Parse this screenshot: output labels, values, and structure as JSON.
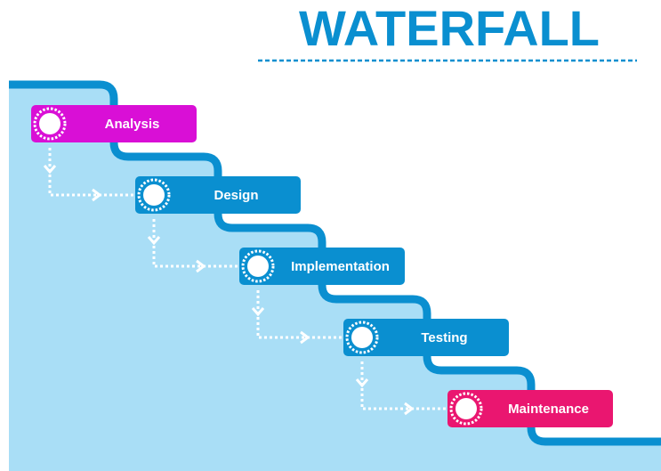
{
  "title": "WATERFALL",
  "steps": [
    {
      "label": "Analysis",
      "color": "#d90fd6"
    },
    {
      "label": "Design",
      "color": "#0a8fd0"
    },
    {
      "label": "Implementation",
      "color": "#0a8fd0"
    },
    {
      "label": "Testing",
      "color": "#0a8fd0"
    },
    {
      "label": "Maintenance",
      "color": "#ea1670"
    }
  ]
}
